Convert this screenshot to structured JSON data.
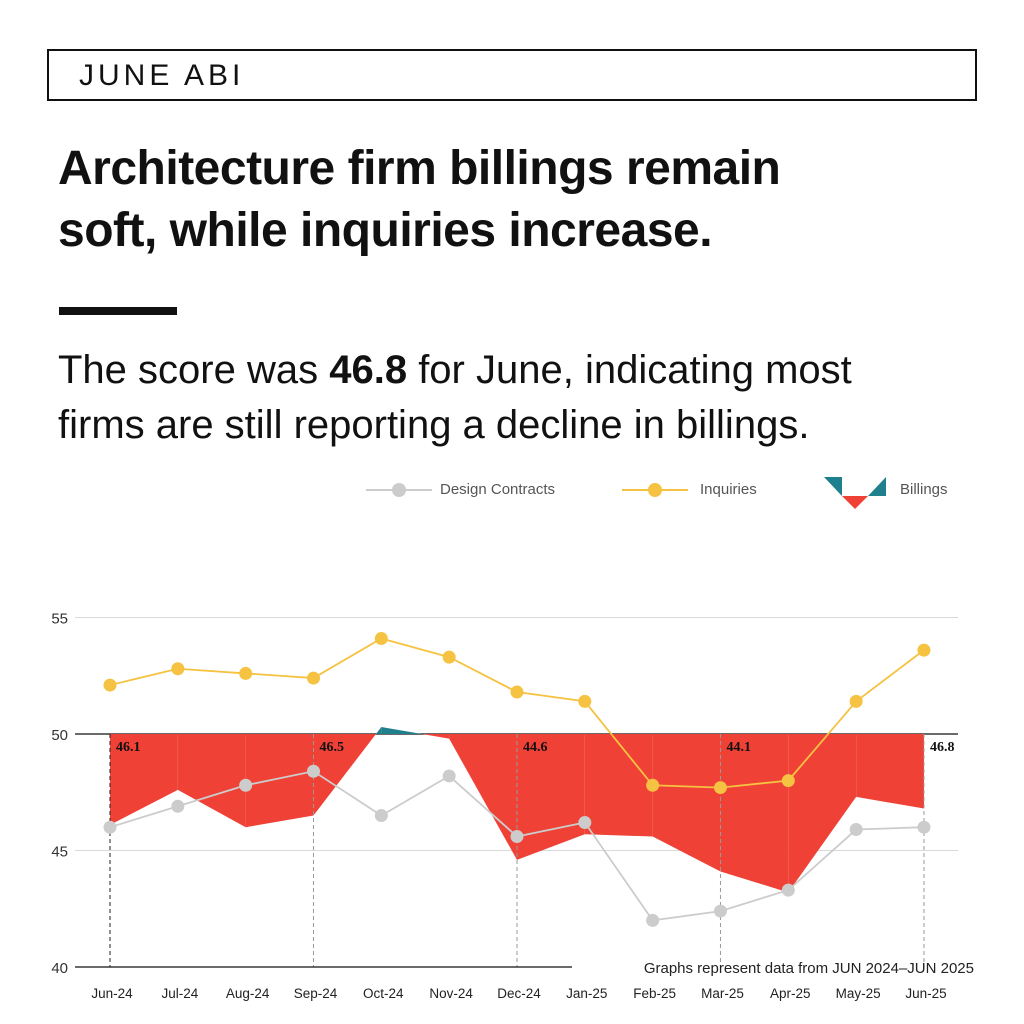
{
  "header": {
    "title": "JUNE ABI"
  },
  "headline": {
    "line1": "Architecture firm billings remain",
    "line2": "soft, while inquiries increase."
  },
  "lede": {
    "text_before": "The score was ",
    "score": "46.8",
    "text_after_line1": " for June, indicating most",
    "line2": "firms are still reporting a decline in billings."
  },
  "legend": {
    "design_contracts": "Design Contracts",
    "inquiries": "Inquiries",
    "billings": "Billings"
  },
  "colors": {
    "design_contracts": "#cccccc",
    "inquiries": "#f5c241",
    "billings_below": "#ef4136",
    "billings_above": "#1f7f8c",
    "grid": "#d9d9d9"
  },
  "chart_data": {
    "type": "line",
    "categories": [
      "Jun-24",
      "Jul-24",
      "Aug-24",
      "Sep-24",
      "Oct-24",
      "Nov-24",
      "Dec-24",
      "Jan-25",
      "Feb-25",
      "Mar-25",
      "Apr-25",
      "May-25",
      "Jun-25"
    ],
    "ylim": [
      40,
      55
    ],
    "yticks": [
      40,
      45,
      50,
      55
    ],
    "baseline": 50,
    "series": [
      {
        "name": "Design Contracts",
        "values": [
          46.0,
          46.9,
          47.8,
          48.4,
          46.5,
          48.2,
          45.6,
          46.2,
          42.0,
          42.4,
          43.3,
          45.9,
          46.0
        ]
      },
      {
        "name": "Inquiries",
        "values": [
          52.1,
          52.8,
          52.6,
          52.4,
          54.1,
          53.3,
          51.8,
          51.4,
          47.8,
          47.7,
          48.0,
          51.4,
          53.6
        ]
      },
      {
        "name": "Billings",
        "values": [
          46.1,
          47.6,
          46.0,
          46.5,
          50.3,
          49.8,
          44.6,
          45.7,
          45.6,
          44.1,
          43.2,
          47.3,
          46.8
        ]
      }
    ],
    "billings_labels": [
      {
        "index": 0,
        "text": "46.1"
      },
      {
        "index": 3,
        "text": "46.5"
      },
      {
        "index": 6,
        "text": "44.6"
      },
      {
        "index": 9,
        "text": "44.1"
      },
      {
        "index": 12,
        "text": "46.8"
      }
    ],
    "note": "Graphs represent data from JUN 2024–JUN 2025"
  }
}
